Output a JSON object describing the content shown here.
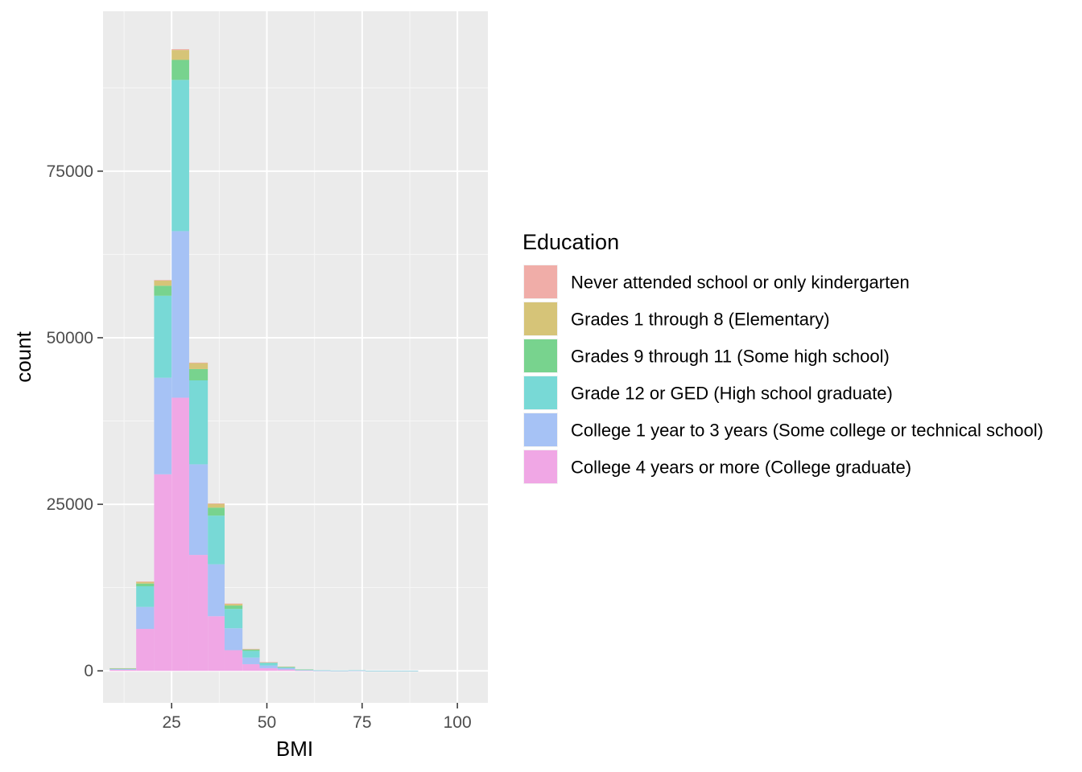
{
  "chart_data": {
    "type": "bar",
    "subtype": "stacked histogram",
    "xlabel": "BMI",
    "ylabel": "count",
    "xlim": [
      7,
      108
    ],
    "ylim": [
      -4800,
      99000
    ],
    "x_ticks": [
      25,
      50,
      75,
      100
    ],
    "y_ticks": [
      0,
      25000,
      50000,
      75000
    ],
    "grid": true,
    "legend": {
      "title": "Education",
      "position": "right"
    },
    "bins": [
      {
        "start": 8.75,
        "end": 15.7
      },
      {
        "start": 15.7,
        "end": 20.4
      },
      {
        "start": 20.4,
        "end": 25.0
      },
      {
        "start": 25.0,
        "end": 29.6
      },
      {
        "start": 29.6,
        "end": 34.5
      },
      {
        "start": 34.5,
        "end": 38.9
      },
      {
        "start": 38.9,
        "end": 43.6
      },
      {
        "start": 43.6,
        "end": 48.1
      },
      {
        "start": 48.1,
        "end": 52.8
      },
      {
        "start": 52.8,
        "end": 57.4
      },
      {
        "start": 57.4,
        "end": 62.2
      },
      {
        "start": 62.2,
        "end": 66.7
      },
      {
        "start": 66.7,
        "end": 71.4
      },
      {
        "start": 71.4,
        "end": 75.9
      },
      {
        "start": 75.9,
        "end": 80.5
      },
      {
        "start": 80.5,
        "end": 85.2
      },
      {
        "start": 85.2,
        "end": 89.7
      },
      {
        "start": 89.7,
        "end": 94.4
      },
      {
        "start": 94.4,
        "end": 99.0
      }
    ],
    "series": [
      {
        "name": "Never attended school or only kindergarten",
        "color": "#F0ADA8",
        "values": [
          0,
          20,
          80,
          120,
          80,
          40,
          20,
          10,
          5,
          0,
          0,
          0,
          0,
          0,
          0,
          0,
          0,
          0,
          0
        ]
      },
      {
        "name": "Grades 1 through 8 (Elementary)",
        "color": "#D6C478",
        "values": [
          10,
          280,
          790,
          1490,
          890,
          590,
          280,
          90,
          30,
          10,
          0,
          0,
          0,
          0,
          0,
          0,
          0,
          0,
          0
        ]
      },
      {
        "name": "Grades 9 through 11 (Some high school)",
        "color": "#78D38E",
        "values": [
          30,
          400,
          1500,
          3000,
          1700,
          1200,
          500,
          200,
          70,
          30,
          10,
          0,
          0,
          0,
          0,
          0,
          0,
          0,
          0
        ]
      },
      {
        "name": "Grade 12 or GED (High school graduate)",
        "color": "#78D9D6",
        "values": [
          100,
          3100,
          12300,
          22700,
          12600,
          7300,
          2900,
          1000,
          400,
          200,
          70,
          30,
          20,
          20,
          10,
          10,
          10,
          0,
          0
        ]
      },
      {
        "name": "College 1 year to 3 years (Some college or technical school)",
        "color": "#A6C2F5",
        "values": [
          110,
          3300,
          14500,
          25000,
          13600,
          7800,
          3300,
          1000,
          400,
          200,
          70,
          30,
          20,
          30,
          10,
          10,
          10,
          0,
          0
        ]
      },
      {
        "name": "College 4 years or more (College graduate)",
        "color": "#F0A7E5",
        "values": [
          150,
          6300,
          29500,
          41000,
          17400,
          8200,
          3100,
          1000,
          400,
          200,
          50,
          20,
          10,
          30,
          10,
          10,
          10,
          0,
          0
        ]
      }
    ]
  }
}
